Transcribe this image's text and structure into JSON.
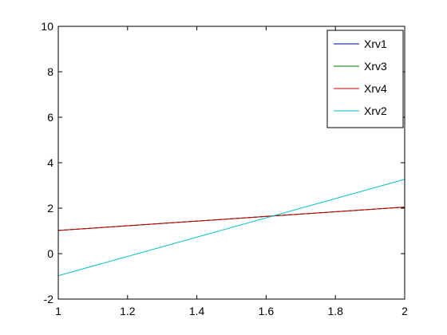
{
  "chart_data": {
    "type": "line",
    "title": "",
    "xlabel": "",
    "ylabel": "",
    "xlim": [
      1,
      2
    ],
    "ylim": [
      -2,
      10
    ],
    "xticks": [
      1,
      1.2,
      1.4,
      1.6,
      1.8,
      2
    ],
    "xtick_labels": [
      "1",
      "1.2",
      "1.4",
      "1.6",
      "1.8",
      "2"
    ],
    "yticks": [
      -2,
      0,
      2,
      4,
      6,
      8,
      10
    ],
    "ytick_labels": [
      "-2",
      "0",
      "2",
      "4",
      "6",
      "8",
      "10"
    ],
    "grid": false,
    "legend_position": "top-right",
    "series": [
      {
        "name": "Xrv1",
        "color": "#0000aa",
        "x": [
          1,
          2
        ],
        "y": [
          1.02,
          2.05
        ]
      },
      {
        "name": "Xrv3",
        "color": "#007700",
        "x": [
          1,
          2
        ],
        "y": [
          1.02,
          2.05
        ]
      },
      {
        "name": "Xrv4",
        "color": "#cc0000",
        "x": [
          1,
          2
        ],
        "y": [
          1.02,
          2.05
        ]
      },
      {
        "name": "Xrv2",
        "color": "#00bfbf",
        "x": [
          1,
          2
        ],
        "y": [
          -0.97,
          3.27
        ]
      }
    ]
  }
}
